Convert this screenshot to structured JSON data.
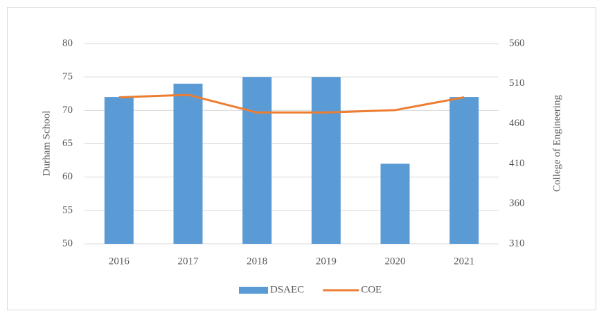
{
  "chart_data": {
    "type": "bar",
    "categories": [
      "2016",
      "2017",
      "2018",
      "2019",
      "2020",
      "2021"
    ],
    "series": [
      {
        "name": "DSAEC",
        "type": "bar",
        "color": "#5b9bd5",
        "values": [
          72,
          74,
          75,
          75,
          62,
          72
        ]
      },
      {
        "name": "COE",
        "type": "line",
        "color": "#ed7d31",
        "axis": "y2",
        "values": [
          493,
          496,
          474,
          474,
          477,
          493
        ]
      }
    ],
    "ylabel": "Durham School",
    "y2label": "College of Engineering",
    "ylim": [
      50,
      80
    ],
    "yticks": [
      50,
      55,
      60,
      65,
      70,
      75,
      80
    ],
    "y2lim": [
      310,
      560
    ],
    "y2ticks": [
      310,
      360,
      410,
      460,
      510,
      560
    ],
    "grid": true,
    "legend": "bottom"
  }
}
